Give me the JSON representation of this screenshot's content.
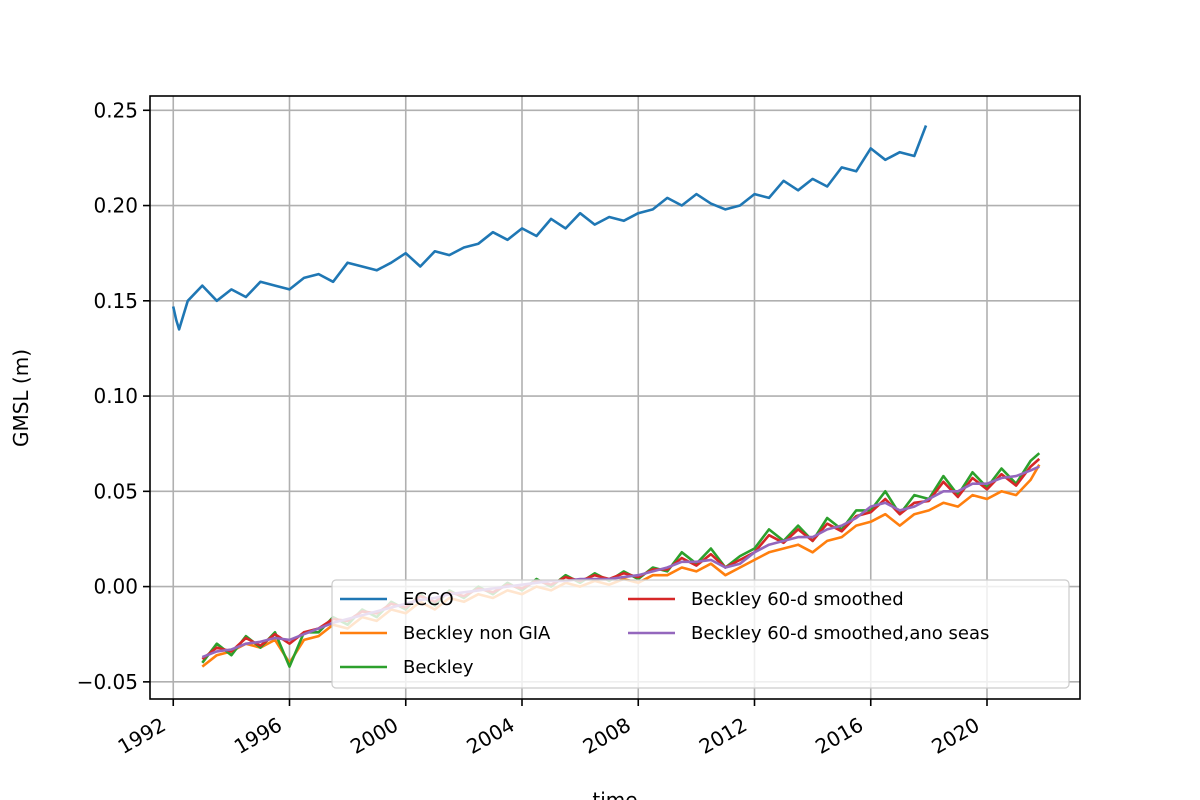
{
  "chart_data": {
    "type": "line",
    "title": "",
    "xlabel": "time",
    "ylabel": "GMSL (m)",
    "xlim": [
      1991.2,
      2023.2
    ],
    "ylim": [
      -0.059,
      0.2575
    ],
    "grid": true,
    "legend_position": "lower-right",
    "legend_columns": 2,
    "x_ticks": [
      1992,
      1996,
      2000,
      2004,
      2008,
      2012,
      2016,
      2020
    ],
    "x_tick_labels": [
      "1992",
      "1996",
      "2000",
      "2004",
      "2008",
      "2012",
      "2016",
      "2020"
    ],
    "y_ticks": [
      -0.05,
      0.0,
      0.05,
      0.1,
      0.15,
      0.2,
      0.25
    ],
    "y_tick_labels": [
      "−0.05",
      "0.00",
      "0.05",
      "0.10",
      "0.15",
      "0.20",
      "0.25"
    ],
    "series": [
      {
        "name": "ECCO",
        "color": "#1f77b4",
        "x": [
          1992.0,
          1992.1,
          1992.2,
          1992.5,
          1993.0,
          1993.5,
          1994.0,
          1994.5,
          1995.0,
          1995.5,
          1996.0,
          1996.5,
          1997.0,
          1997.5,
          1998.0,
          1998.5,
          1999.0,
          1999.5,
          2000.0,
          2000.5,
          2001.0,
          2001.5,
          2002.0,
          2002.5,
          2003.0,
          2003.5,
          2004.0,
          2004.5,
          2005.0,
          2005.5,
          2006.0,
          2006.5,
          2007.0,
          2007.5,
          2008.0,
          2008.5,
          2009.0,
          2009.5,
          2010.0,
          2010.5,
          2011.0,
          2011.5,
          2012.0,
          2012.5,
          2013.0,
          2013.5,
          2014.0,
          2014.5,
          2015.0,
          2015.5,
          2016.0,
          2016.5,
          2017.0,
          2017.5,
          2017.9
        ],
        "y": [
          0.147,
          0.14,
          0.135,
          0.15,
          0.158,
          0.15,
          0.156,
          0.152,
          0.16,
          0.158,
          0.156,
          0.162,
          0.164,
          0.16,
          0.17,
          0.168,
          0.166,
          0.17,
          0.175,
          0.168,
          0.176,
          0.174,
          0.178,
          0.18,
          0.186,
          0.182,
          0.188,
          0.184,
          0.193,
          0.188,
          0.196,
          0.19,
          0.194,
          0.192,
          0.196,
          0.198,
          0.204,
          0.2,
          0.206,
          0.201,
          0.198,
          0.2,
          0.206,
          0.204,
          0.213,
          0.208,
          0.214,
          0.21,
          0.22,
          0.218,
          0.23,
          0.224,
          0.228,
          0.226,
          0.242
        ]
      },
      {
        "name": "Beckley non GIA",
        "color": "#ff7f0e",
        "x": [
          1993.0,
          1993.5,
          1994.0,
          1994.5,
          1995.0,
          1995.5,
          1996.0,
          1996.5,
          1997.0,
          1997.5,
          1998.0,
          1998.5,
          1999.0,
          1999.5,
          2000.0,
          2000.5,
          2001.0,
          2001.5,
          2002.0,
          2002.5,
          2003.0,
          2003.5,
          2004.0,
          2004.5,
          2005.0,
          2005.5,
          2006.0,
          2006.5,
          2007.0,
          2007.5,
          2008.0,
          2008.5,
          2009.0,
          2009.5,
          2010.0,
          2010.5,
          2011.0,
          2011.5,
          2012.0,
          2012.5,
          2013.0,
          2013.5,
          2014.0,
          2014.5,
          2015.0,
          2015.5,
          2016.0,
          2016.5,
          2017.0,
          2017.5,
          2018.0,
          2018.5,
          2019.0,
          2019.5,
          2020.0,
          2020.5,
          2021.0,
          2021.5,
          2021.8
        ],
        "y": [
          -0.042,
          -0.036,
          -0.034,
          -0.03,
          -0.032,
          -0.028,
          -0.04,
          -0.028,
          -0.026,
          -0.02,
          -0.022,
          -0.016,
          -0.018,
          -0.012,
          -0.014,
          -0.008,
          -0.012,
          -0.006,
          -0.008,
          -0.004,
          -0.006,
          -0.002,
          -0.004,
          0.0,
          -0.002,
          0.002,
          0.0,
          0.003,
          0.001,
          0.004,
          0.002,
          0.006,
          0.006,
          0.01,
          0.008,
          0.012,
          0.006,
          0.01,
          0.014,
          0.018,
          0.02,
          0.022,
          0.018,
          0.024,
          0.026,
          0.032,
          0.034,
          0.038,
          0.032,
          0.038,
          0.04,
          0.044,
          0.042,
          0.048,
          0.046,
          0.05,
          0.048,
          0.056,
          0.064
        ]
      },
      {
        "name": "Beckley",
        "color": "#2ca02c",
        "x": [
          1993.0,
          1993.5,
          1994.0,
          1994.5,
          1995.0,
          1995.5,
          1996.0,
          1996.5,
          1997.0,
          1997.5,
          1998.0,
          1998.5,
          1999.0,
          1999.5,
          2000.0,
          2000.5,
          2001.0,
          2001.5,
          2002.0,
          2002.5,
          2003.0,
          2003.5,
          2004.0,
          2004.5,
          2005.0,
          2005.5,
          2006.0,
          2006.5,
          2007.0,
          2007.5,
          2008.0,
          2008.5,
          2009.0,
          2009.5,
          2010.0,
          2010.5,
          2011.0,
          2011.5,
          2012.0,
          2012.5,
          2013.0,
          2013.5,
          2014.0,
          2014.5,
          2015.0,
          2015.5,
          2016.0,
          2016.5,
          2017.0,
          2017.5,
          2018.0,
          2018.5,
          2019.0,
          2019.5,
          2020.0,
          2020.5,
          2021.0,
          2021.5,
          2021.8
        ],
        "y": [
          -0.04,
          -0.03,
          -0.036,
          -0.026,
          -0.032,
          -0.024,
          -0.042,
          -0.024,
          -0.024,
          -0.016,
          -0.02,
          -0.012,
          -0.016,
          -0.008,
          -0.012,
          -0.004,
          -0.01,
          -0.002,
          -0.006,
          0.0,
          -0.004,
          0.002,
          -0.002,
          0.004,
          0.0,
          0.006,
          0.002,
          0.007,
          0.003,
          0.008,
          0.004,
          0.01,
          0.008,
          0.018,
          0.012,
          0.02,
          0.01,
          0.016,
          0.02,
          0.03,
          0.024,
          0.032,
          0.024,
          0.036,
          0.03,
          0.04,
          0.04,
          0.05,
          0.038,
          0.048,
          0.046,
          0.058,
          0.048,
          0.06,
          0.052,
          0.062,
          0.054,
          0.066,
          0.07
        ]
      },
      {
        "name": "Beckley 60-d smoothed",
        "color": "#d62728",
        "x": [
          1993.0,
          1993.5,
          1994.0,
          1994.5,
          1995.0,
          1995.5,
          1996.0,
          1996.5,
          1997.0,
          1997.5,
          1998.0,
          1998.5,
          1999.0,
          1999.5,
          2000.0,
          2000.5,
          2001.0,
          2001.5,
          2002.0,
          2002.5,
          2003.0,
          2003.5,
          2004.0,
          2004.5,
          2005.0,
          2005.5,
          2006.0,
          2006.5,
          2007.0,
          2007.5,
          2008.0,
          2008.5,
          2009.0,
          2009.5,
          2010.0,
          2010.5,
          2011.0,
          2011.5,
          2012.0,
          2012.5,
          2013.0,
          2013.5,
          2014.0,
          2014.5,
          2015.0,
          2015.5,
          2016.0,
          2016.5,
          2017.0,
          2017.5,
          2018.0,
          2018.5,
          2019.0,
          2019.5,
          2020.0,
          2020.5,
          2021.0,
          2021.5,
          2021.8
        ],
        "y": [
          -0.038,
          -0.032,
          -0.034,
          -0.027,
          -0.031,
          -0.025,
          -0.03,
          -0.024,
          -0.022,
          -0.017,
          -0.018,
          -0.013,
          -0.014,
          -0.009,
          -0.011,
          -0.005,
          -0.008,
          -0.003,
          -0.005,
          -0.001,
          -0.003,
          0.001,
          -0.001,
          0.003,
          0.001,
          0.005,
          0.003,
          0.006,
          0.004,
          0.007,
          0.005,
          0.009,
          0.009,
          0.015,
          0.011,
          0.017,
          0.01,
          0.014,
          0.018,
          0.027,
          0.023,
          0.03,
          0.024,
          0.033,
          0.029,
          0.037,
          0.039,
          0.046,
          0.038,
          0.044,
          0.045,
          0.055,
          0.047,
          0.057,
          0.051,
          0.059,
          0.053,
          0.063,
          0.067
        ]
      },
      {
        "name": "Beckley 60-d smoothed,ano seas",
        "color": "#9467bd",
        "x": [
          1993.0,
          1993.5,
          1994.0,
          1994.5,
          1995.0,
          1995.5,
          1996.0,
          1996.5,
          1997.0,
          1997.5,
          1998.0,
          1998.5,
          1999.0,
          1999.5,
          2000.0,
          2000.5,
          2001.0,
          2001.5,
          2002.0,
          2002.5,
          2003.0,
          2003.5,
          2004.0,
          2004.5,
          2005.0,
          2005.5,
          2006.0,
          2006.5,
          2007.0,
          2007.5,
          2008.0,
          2008.5,
          2009.0,
          2009.5,
          2010.0,
          2010.5,
          2011.0,
          2011.5,
          2012.0,
          2012.5,
          2013.0,
          2013.5,
          2014.0,
          2014.5,
          2015.0,
          2015.5,
          2016.0,
          2016.5,
          2017.0,
          2017.5,
          2018.0,
          2018.5,
          2019.0,
          2019.5,
          2020.0,
          2020.5,
          2021.0,
          2021.5,
          2021.8
        ],
        "y": [
          -0.037,
          -0.034,
          -0.033,
          -0.03,
          -0.029,
          -0.027,
          -0.028,
          -0.025,
          -0.022,
          -0.019,
          -0.017,
          -0.015,
          -0.013,
          -0.011,
          -0.009,
          -0.007,
          -0.006,
          -0.004,
          -0.003,
          -0.002,
          -0.001,
          0.0,
          0.001,
          0.002,
          0.003,
          0.003,
          0.004,
          0.004,
          0.004,
          0.005,
          0.006,
          0.008,
          0.01,
          0.013,
          0.013,
          0.014,
          0.01,
          0.012,
          0.018,
          0.022,
          0.024,
          0.026,
          0.026,
          0.03,
          0.032,
          0.036,
          0.042,
          0.044,
          0.04,
          0.042,
          0.046,
          0.05,
          0.05,
          0.054,
          0.054,
          0.057,
          0.058,
          0.061,
          0.063
        ]
      }
    ]
  }
}
